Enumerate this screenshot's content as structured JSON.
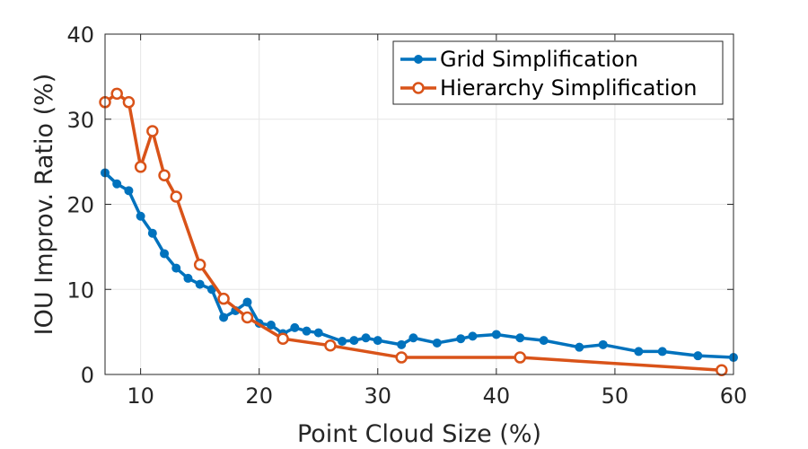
{
  "chart_data": {
    "type": "line",
    "title": "",
    "xlabel": "Point Cloud Size (%)",
    "ylabel": "IOU Improv. Ratio (%)",
    "xlim": [
      7,
      60
    ],
    "ylim": [
      0,
      40
    ],
    "xticks": [
      10,
      20,
      30,
      40,
      50,
      60
    ],
    "yticks": [
      0,
      10,
      20,
      30,
      40
    ],
    "grid": true,
    "legend_position": "top-right",
    "series": [
      {
        "name": "Grid Simplification",
        "color": "#0072BD",
        "marker": "filled-circle",
        "x": [
          7,
          8,
          9,
          10,
          11,
          12,
          13,
          14,
          15,
          16,
          17,
          18,
          19,
          20,
          21,
          22,
          23,
          24,
          25,
          27,
          28,
          29,
          30,
          32,
          33,
          35,
          37,
          38,
          40,
          42,
          44,
          47,
          49,
          52,
          54,
          57,
          60
        ],
        "y": [
          23.7,
          22.4,
          21.6,
          18.6,
          16.6,
          14.2,
          12.5,
          11.3,
          10.6,
          10.0,
          6.7,
          7.5,
          8.5,
          6.0,
          5.8,
          4.8,
          5.5,
          5.1,
          4.9,
          3.9,
          4.0,
          4.3,
          4.0,
          3.5,
          4.3,
          3.7,
          4.2,
          4.5,
          4.7,
          4.3,
          4.0,
          3.2,
          3.5,
          2.7,
          2.7,
          2.2,
          2.0
        ]
      },
      {
        "name": "Hierarchy Simplification",
        "color": "#D95319",
        "marker": "open-circle",
        "x": [
          7,
          8,
          9,
          10,
          11,
          12,
          13,
          15,
          17,
          19,
          22,
          26,
          32,
          42,
          59
        ],
        "y": [
          32.0,
          33.0,
          32.0,
          24.4,
          28.6,
          23.4,
          20.9,
          12.9,
          8.9,
          6.7,
          4.2,
          3.4,
          2.0,
          2.0,
          0.5
        ]
      }
    ]
  }
}
